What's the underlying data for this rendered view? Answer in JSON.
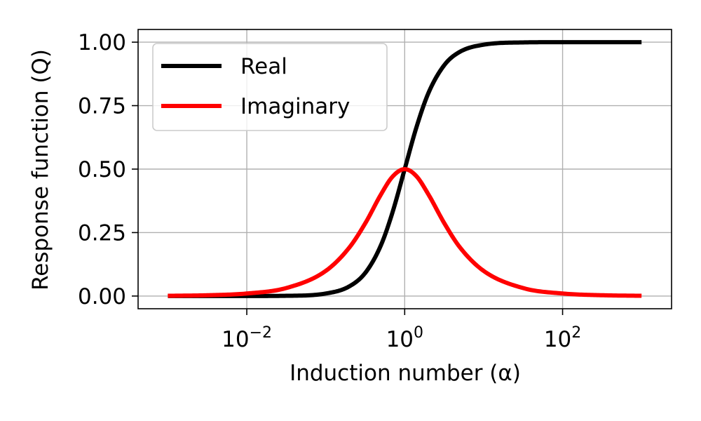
{
  "chart_data": {
    "type": "line",
    "title": "",
    "xlabel": "Induction number (α)",
    "ylabel": "Response function (Q)",
    "xscale": "log",
    "xlim": [
      0.00042,
      2400
    ],
    "ylim": [
      -0.05,
      1.05
    ],
    "grid": true,
    "legend": {
      "placement": "top-left"
    },
    "x_ticks": [
      {
        "base": "10",
        "exp": "−2",
        "value": 0.01
      },
      {
        "base": "10",
        "exp": "0",
        "value": 1
      },
      {
        "base": "10",
        "exp": "2",
        "value": 100
      }
    ],
    "y_ticks": [
      {
        "label": "0.00",
        "value": 0
      },
      {
        "label": "0.25",
        "value": 0.25
      },
      {
        "label": "0.50",
        "value": 0.5
      },
      {
        "label": "0.75",
        "value": 0.75
      },
      {
        "label": "1.00",
        "value": 1
      }
    ],
    "x": [
      0.001,
      0.0032,
      0.01,
      0.032,
      0.1,
      0.2,
      0.32,
      0.5,
      0.7,
      1,
      1.4,
      2,
      3.2,
      5,
      10,
      32,
      100,
      316,
      1000
    ],
    "series": [
      {
        "name": "Real",
        "color": "#000000",
        "values": [
          1e-06,
          1e-05,
          0.0001,
          0.001,
          0.0099,
          0.0385,
          0.093,
          0.2,
          0.329,
          0.5,
          0.662,
          0.8,
          0.911,
          0.962,
          0.99,
          0.999,
          1.0,
          1.0,
          1.0
        ]
      },
      {
        "name": "Imaginary",
        "color": "#ff0000",
        "values": [
          0.001,
          0.0032,
          0.01,
          0.032,
          0.099,
          0.192,
          0.289,
          0.4,
          0.47,
          0.5,
          0.473,
          0.4,
          0.285,
          0.192,
          0.099,
          0.031,
          0.01,
          0.0032,
          0.001
        ]
      }
    ]
  }
}
